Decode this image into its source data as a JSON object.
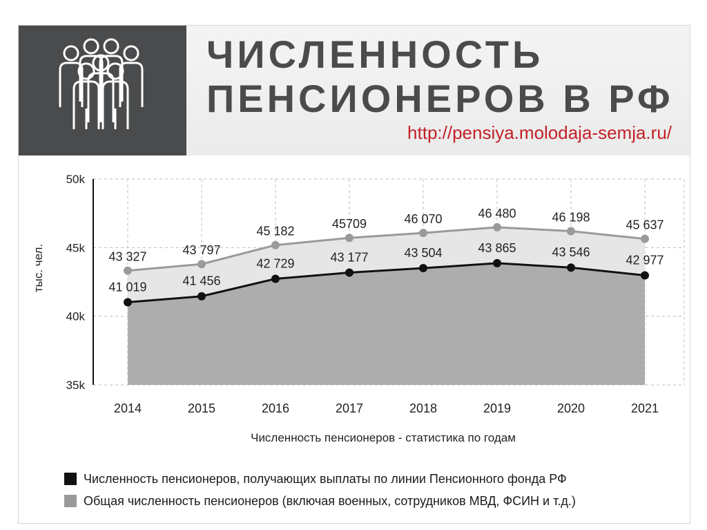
{
  "header": {
    "title_line1": "ЧИСЛЕННОСТЬ",
    "title_line2": "ПЕНСИОНЕРОВ В РФ",
    "url": "http://pensiya.molodaja-semja.ru/",
    "logo_icon": "people-group-icon"
  },
  "chart_data": {
    "type": "area",
    "categories": [
      "2014",
      "2015",
      "2016",
      "2017",
      "2018",
      "2019",
      "2020",
      "2021"
    ],
    "series": [
      {
        "name": "Общая численность пенсионеров (включая военных, сотрудников МВД, ФСИН и т.д.)",
        "values": [
          43327,
          43797,
          45182,
          45709,
          46070,
          46480,
          46198,
          45637
        ],
        "labels": [
          "43 327",
          "43 797",
          "45 182",
          "45709",
          "46 070",
          "46 480",
          "46 198",
          "45 637"
        ],
        "color": "#9a9a9a",
        "fill": "#e6e6e6"
      },
      {
        "name": "Численность пенсионеров, получающих выплаты по линии Пенсионного фонда РФ",
        "values": [
          41019,
          41456,
          42729,
          43177,
          43504,
          43865,
          43546,
          42977
        ],
        "labels": [
          "41 019",
          "41 456",
          "42 729",
          "43 177",
          "43 504",
          "43 865",
          "43 546",
          "42 977"
        ],
        "color": "#111111",
        "fill": "#adadad"
      }
    ],
    "ylim": [
      35000,
      50000
    ],
    "yticks": [
      35000,
      40000,
      45000,
      50000
    ],
    "ytick_labels": [
      "35k",
      "40k",
      "45k",
      "50k"
    ],
    "ylabel": "тыс. чел.",
    "xlabel": "Численность пенсионеров - статистика по годам",
    "grid": true,
    "legend_position": "bottom"
  },
  "legend": {
    "item1": "Численность пенсионеров, получающих выплаты по линии Пенсионного фонда РФ",
    "item1_color": "#111111",
    "item2": "Общая численность пенсионеров (включая военных, сотрудников МВД, ФСИН и т.д.)",
    "item2_color": "#9a9a9a"
  }
}
